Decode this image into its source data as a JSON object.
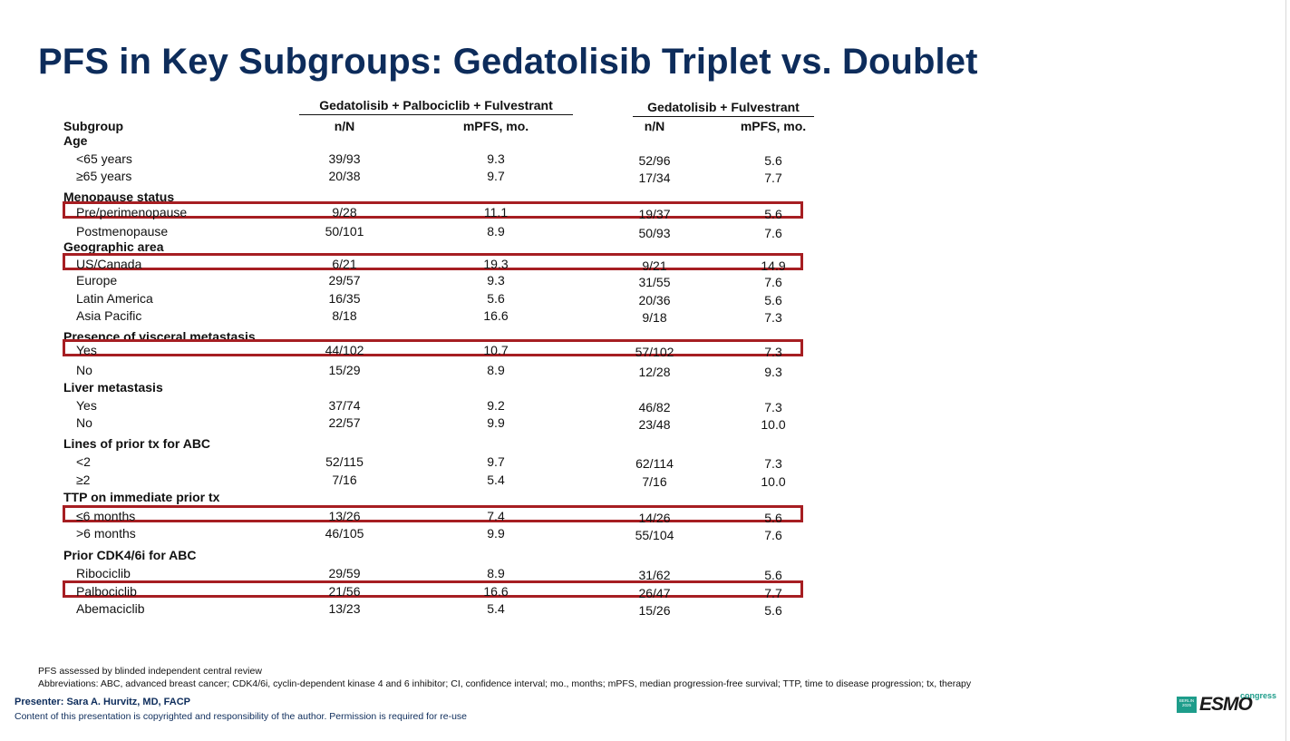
{
  "title": "PFS in Key Subgroups: Gedatolisib Triplet vs. Doublet",
  "groups": {
    "triplet": "Gedatolisib + Palbociclib + Fulvestrant",
    "doublet": "Gedatolisib + Fulvestrant"
  },
  "columns": {
    "subgroup": "Subgroup",
    "tri_n": "n/N",
    "tri_mpfs": "mPFS, mo.",
    "dbl_n": "n/N",
    "dbl_mpfs": "mPFS, mo."
  },
  "rows": [
    {
      "label": "Age",
      "category": true
    },
    {
      "label": "<65 years",
      "tri_n": "39/93",
      "tri_m": "9.3",
      "dbl_n": "52/96",
      "dbl_m": "5.6"
    },
    {
      "label": "≥65 years",
      "tri_n": "20/38",
      "tri_m": "9.7",
      "dbl_n": "17/34",
      "dbl_m": "7.7"
    },
    {
      "label": "Menopause status",
      "category": true
    },
    {
      "label": "Pre/perimenopause",
      "tri_n": "9/28",
      "tri_m": "11.1",
      "dbl_n": "19/37",
      "dbl_m": "5.6",
      "highlight": true
    },
    {
      "label": "Postmenopause",
      "tri_n": "50/101",
      "tri_m": "8.9",
      "dbl_n": "50/93",
      "dbl_m": "7.6"
    },
    {
      "label": "Geographic area",
      "category": true
    },
    {
      "label": "US/Canada",
      "tri_n": "6/21",
      "tri_m": "19.3",
      "dbl_n": "9/21",
      "dbl_m": "14.9",
      "highlight": true
    },
    {
      "label": "Europe",
      "tri_n": "29/57",
      "tri_m": "9.3",
      "dbl_n": "31/55",
      "dbl_m": "7.6"
    },
    {
      "label": "Latin America",
      "tri_n": "16/35",
      "tri_m": "5.6",
      "dbl_n": "20/36",
      "dbl_m": "5.6"
    },
    {
      "label": "Asia Pacific",
      "tri_n": "8/18",
      "tri_m": "16.6",
      "dbl_n": "9/18",
      "dbl_m": "7.3"
    },
    {
      "label": "Presence of visceral metastasis",
      "category": true
    },
    {
      "label": "Yes",
      "tri_n": "44/102",
      "tri_m": "10.7",
      "dbl_n": "57/102",
      "dbl_m": "7.3",
      "highlight": true
    },
    {
      "label": "No",
      "tri_n": "15/29",
      "tri_m": "8.9",
      "dbl_n": "12/28",
      "dbl_m": "9.3"
    },
    {
      "label": "Liver metastasis",
      "category": true
    },
    {
      "label": "Yes",
      "tri_n": "37/74",
      "tri_m": "9.2",
      "dbl_n": "46/82",
      "dbl_m": "7.3"
    },
    {
      "label": "No",
      "tri_n": "22/57",
      "tri_m": "9.9",
      "dbl_n": "23/48",
      "dbl_m": "10.0"
    },
    {
      "label": "Lines of prior tx for ABC",
      "category": true
    },
    {
      "label": "<2",
      "tri_n": "52/115",
      "tri_m": "9.7",
      "dbl_n": "62/114",
      "dbl_m": "7.3"
    },
    {
      "label": "≥2",
      "tri_n": "7/16",
      "tri_m": "5.4",
      "dbl_n": "7/16",
      "dbl_m": "10.0"
    },
    {
      "label": "TTP on immediate prior tx",
      "category": true
    },
    {
      "label": "≤6 months",
      "tri_n": "13/26",
      "tri_m": "7.4",
      "dbl_n": "14/26",
      "dbl_m": "5.6",
      "highlight": true
    },
    {
      "label": ">6 months",
      "tri_n": "46/105",
      "tri_m": "9.9",
      "dbl_n": "55/104",
      "dbl_m": "7.6"
    },
    {
      "label": "Prior CDK4/6i for ABC",
      "category": true
    },
    {
      "label": "Ribociclib",
      "tri_n": "29/59",
      "tri_m": "8.9",
      "dbl_n": "31/62",
      "dbl_m": "5.6"
    },
    {
      "label": "Palbociclib",
      "tri_n": "21/56",
      "tri_m": "16.6",
      "dbl_n": "26/47",
      "dbl_m": "7.7",
      "highlight": true
    },
    {
      "label": "Abemaciclib",
      "tri_n": "13/23",
      "tri_m": "5.4",
      "dbl_n": "15/26",
      "dbl_m": "5.6"
    }
  ],
  "footnotes": {
    "line1": "PFS assessed by blinded independent central review",
    "line2": "Abbreviations: ABC, advanced breast cancer; CDK4/6i, cyclin-dependent kinase 4 and 6 inhibitor; CI, confidence interval; mo., months; mPFS, median progression-free survival; TTP, time to disease progression; tx, therapy"
  },
  "presenter": "Presenter: Sara A. Hurvitz, MD, FACP",
  "copyright": "Content of this presentation is copyrighted and responsibility of the author. Permission is required for re-use",
  "logo": {
    "badge_city": "BERLIN",
    "badge_year": "2025",
    "word": "ESMO",
    "suffix": "congress"
  },
  "colors": {
    "title": "#0d2c5b",
    "highlight_box": "#a61e22",
    "logo_accent": "#1e9d8b"
  }
}
